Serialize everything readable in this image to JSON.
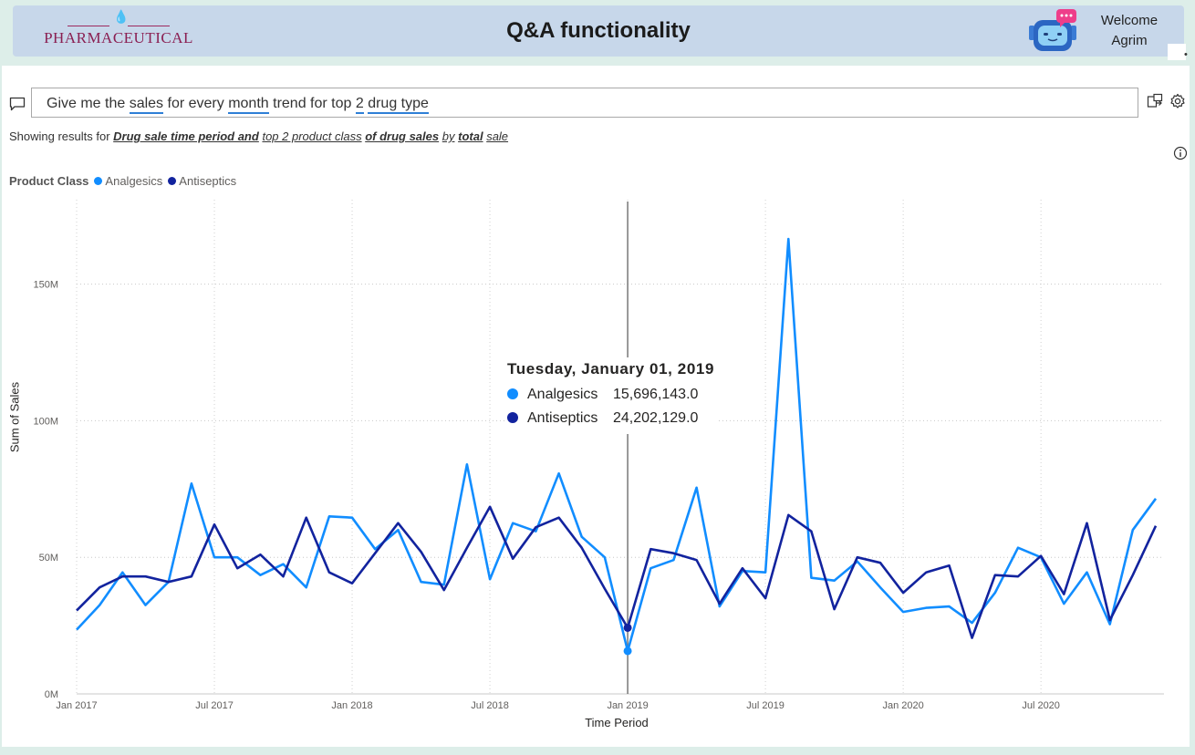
{
  "header": {
    "logo_text": "PHARMACEUTICAL",
    "title": "Q&A functionality",
    "welcome_line1": "Welcome",
    "welcome_line2": "Agrim"
  },
  "qa": {
    "question_parts": [
      {
        "text": "Give me the ",
        "underline": false
      },
      {
        "text": "sales",
        "underline": true
      },
      {
        "text": " for every ",
        "underline": false
      },
      {
        "text": "month",
        "underline": true
      },
      {
        "text": " trend for top ",
        "underline": false
      },
      {
        "text": "2",
        "underline": true
      },
      {
        "text": " ",
        "underline": false
      },
      {
        "text": "drug type",
        "underline": true
      }
    ],
    "showing_parts": [
      {
        "text": "Showing results for ",
        "style": "plain"
      },
      {
        "text": "Drug sale time period and",
        "style": "bold"
      },
      {
        "text": " ",
        "style": "plain"
      },
      {
        "text": "top 2 product class",
        "style": "italic"
      },
      {
        "text": " ",
        "style": "plain"
      },
      {
        "text": "of drug sales",
        "style": "bold"
      },
      {
        "text": " ",
        "style": "plain"
      },
      {
        "text": "by",
        "style": "italic"
      },
      {
        "text": " ",
        "style": "plain"
      },
      {
        "text": "total",
        "style": "bold"
      },
      {
        "text": " ",
        "style": "plain"
      },
      {
        "text": "sale",
        "style": "italic"
      }
    ]
  },
  "legend": {
    "title": "Product Class",
    "items": [
      {
        "label": "Analgesics",
        "color": "#118dff"
      },
      {
        "label": "Antiseptics",
        "color": "#12239e"
      }
    ]
  },
  "tooltip": {
    "title": "Tuesday, January 01, 2019",
    "rows": [
      {
        "label": "Analgesics",
        "value": "15,696,143.0",
        "color": "#118dff"
      },
      {
        "label": "Antiseptics",
        "value": "24,202,129.0",
        "color": "#12239e"
      }
    ]
  },
  "chart_data": {
    "type": "line",
    "xlabel": "Time Period",
    "ylabel": "Sum of Sales",
    "x_start": "2017-01",
    "x_end": "2020-12",
    "x_ticks": [
      "Jan 2017",
      "Jul 2017",
      "Jan 2018",
      "Jul 2018",
      "Jan 2019",
      "Jul 2019",
      "Jan 2020",
      "Jul 2020"
    ],
    "y_ticks": [
      "0M",
      "50M",
      "100M",
      "150M"
    ],
    "ylim": [
      0,
      170000000
    ],
    "grid": "dotted",
    "legend_position": "top-left",
    "highlight": "2019-01",
    "series": [
      {
        "name": "Analgesics",
        "color": "#118dff",
        "values": [
          23500000,
          32500000,
          44500000,
          32500000,
          41000000,
          77000000,
          50000000,
          50000000,
          43500000,
          47500000,
          39000000,
          65000000,
          64500000,
          53000000,
          60000000,
          41000000,
          40000000,
          84000000,
          42000000,
          62500000,
          59500000,
          80700000,
          57500000,
          50000000,
          15696143,
          46000000,
          49000000,
          75500000,
          32000000,
          45000000,
          44500000,
          166500000,
          42500000,
          41500000,
          48500000,
          39000000,
          30000000,
          31500000,
          32000000,
          26000000,
          37000000,
          53500000,
          50000000,
          33000000,
          44500000,
          25500000,
          60000000,
          71500000
        ]
      },
      {
        "name": "Antiseptics",
        "color": "#12239e",
        "values": [
          30500000,
          39000000,
          43000000,
          43000000,
          41000000,
          43000000,
          62000000,
          46000000,
          51000000,
          43000000,
          64500000,
          44500000,
          40500000,
          51500000,
          62500000,
          52000000,
          38000000,
          53500000,
          68500000,
          49500000,
          61000000,
          64500000,
          53500000,
          38500000,
          24202129,
          53000000,
          51500000,
          49000000,
          33000000,
          46000000,
          35000000,
          65500000,
          59500000,
          31000000,
          50000000,
          48000000,
          37000000,
          44500000,
          47000000,
          20500000,
          43500000,
          43000000,
          50500000,
          36500000,
          62500000,
          27000000,
          43500000,
          61500000
        ]
      }
    ]
  }
}
